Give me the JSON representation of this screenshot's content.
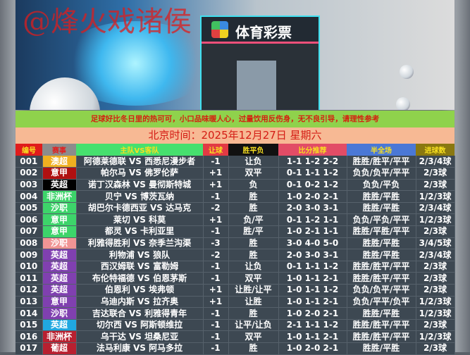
{
  "banner": {
    "watermark": "@烽火戏诸侯",
    "store_sign": "体育彩票"
  },
  "notice": "足球好比冬日里的热可可，小口品味暖人心，过量饮用反伤身，无不良引导，请理性参考",
  "date_line": "北京时间：2025年12月27日  星期六",
  "columns": [
    {
      "label": "编号",
      "bg": "#e01c1c"
    },
    {
      "label": "赛事",
      "bg": "#8c8c8c"
    },
    {
      "label": "主队VS客队",
      "bg": "#46e06e"
    },
    {
      "label": "让球",
      "bg": "#e23a44"
    },
    {
      "label": "胜平负",
      "bg": "#111111"
    },
    {
      "label": "比分推荐",
      "bg": "#e24c66"
    },
    {
      "label": "半全场",
      "bg": "#4a78d6"
    },
    {
      "label": "进球数",
      "bg": "#8a7810"
    }
  ],
  "rows": [
    {
      "no": "001",
      "league": "澳超",
      "league_color": "#f0b020",
      "match": "阿德莱德联 VS 西悉尼漫步者",
      "handicap": "-1",
      "result": "让负",
      "scores": "1-1 1-2 2-2",
      "half_full": "胜胜/胜平/平平",
      "goals": "2/3/4球"
    },
    {
      "no": "002",
      "league": "意甲",
      "league_color": "#b01010",
      "match": "帕尔马 VS 佛罗伦萨",
      "handicap": "+1",
      "result": "双平",
      "scores": "0-1 1-1 1-2",
      "half_full": "负负/负平/平平",
      "goals": "2/3球"
    },
    {
      "no": "003",
      "league": "英超",
      "league_color": "#000000",
      "match": "诺丁汉森林 VS 曼彻斯特城",
      "handicap": "+1",
      "result": "负",
      "scores": "0-1 0-2 1-2",
      "half_full": "负负/平负",
      "goals": "2/3球"
    },
    {
      "no": "004",
      "league": "非洲杯",
      "league_color": "#3dd46a",
      "match": "贝宁 VS 博茨瓦纳",
      "handicap": "-1",
      "result": "胜",
      "scores": "1-0 2-0 2-1",
      "half_full": "胜胜/平胜",
      "goals": "1/2/3球"
    },
    {
      "no": "005",
      "league": "沙职",
      "league_color": "#3dd46a",
      "match": "胡巴尔卡德西亚 VS 达马克",
      "handicap": "-2",
      "result": "胜",
      "scores": "2-0 3-0 3-1",
      "half_full": "胜胜/平胜",
      "goals": "2/3/4球"
    },
    {
      "no": "006",
      "league": "意甲",
      "league_color": "#3dd46a",
      "match": "莱切 VS 科莫",
      "handicap": "+1",
      "result": "负/平",
      "scores": "0-1 1-2 1-1",
      "half_full": "负负/平负/平平",
      "goals": "1/2/3球"
    },
    {
      "no": "007",
      "league": "意甲",
      "league_color": "#3dd46a",
      "match": "都灵 VS 卡利亚里",
      "handicap": "-1",
      "result": "胜/平",
      "scores": "1-0 2-1 1-1",
      "half_full": "胜胜/平胜/平平",
      "goals": "2/3球"
    },
    {
      "no": "008",
      "league": "沙职",
      "league_color": "#f09494",
      "match": "利雅得胜利 VS 奈季兰沟渠",
      "handicap": "-3",
      "result": "胜",
      "scores": "3-0 4-0 5-0",
      "half_full": "胜胜/平胜",
      "goals": "3/4/5球"
    },
    {
      "no": "009",
      "league": "英超",
      "league_color": "#8040b0",
      "match": "利物浦 VS 狼队",
      "handicap": "-2",
      "result": "胜",
      "scores": "2-0 3-0 3-1",
      "half_full": "胜胜/平胜",
      "goals": "2/3/4球"
    },
    {
      "no": "010",
      "league": "英超",
      "league_color": "#8040b0",
      "match": "西汉姆联 VS 富勒姆",
      "handicap": "-1",
      "result": "让负",
      "scores": "0-1 1-1 1-2",
      "half_full": "胜胜/胜平/平平",
      "goals": "2/3球"
    },
    {
      "no": "011",
      "league": "英超",
      "league_color": "#8040b0",
      "match": "布伦特福德 VS 伯恩茅斯",
      "handicap": "-1",
      "result": "双平",
      "scores": "1-0 1-1 2-1",
      "half_full": "胜胜/胜平/平平",
      "goals": "2/3球"
    },
    {
      "no": "012",
      "league": "英超",
      "league_color": "#8040b0",
      "match": "伯恩利 VS 埃弗顿",
      "handicap": "+1",
      "result": "让胜/让平",
      "scores": "1-0 1-1 1-2",
      "half_full": "负负/负平/平平",
      "goals": "2/3球"
    },
    {
      "no": "013",
      "league": "意甲",
      "league_color": "#8040b0",
      "match": "乌迪内斯 VS 拉齐奥",
      "handicap": "+1",
      "result": "让胜",
      "scores": "1-0 1-1 2-1",
      "half_full": "负负/平平/负平",
      "goals": "1/2/3球"
    },
    {
      "no": "014",
      "league": "沙职",
      "league_color": "#8040b0",
      "match": "吉达联合 VS 利雅得青年",
      "handicap": "-1",
      "result": "胜",
      "scores": "1-0 2-0 2-1",
      "half_full": "胜胜/平胜",
      "goals": "1/2/3球"
    },
    {
      "no": "015",
      "league": "英超",
      "league_color": "#20a8e0",
      "match": "切尔西 VS 阿斯顿维拉",
      "handicap": "-1",
      "result": "让平/让负",
      "scores": "2-1 1-1 1-2",
      "half_full": "胜胜/胜平/平平",
      "goals": "2/3球"
    },
    {
      "no": "016",
      "league": "非洲杯",
      "league_color": "#b82030",
      "match": "乌干达 VS 坦桑尼亚",
      "handicap": "-1",
      "result": "双平",
      "scores": "1-0 1-1 2-1",
      "half_full": "胜胜/胜平/平平",
      "goals": "1/2/3球"
    },
    {
      "no": "017",
      "league": "葡超",
      "league_color": "#b82030",
      "match": "法马利康 VS 阿马多拉",
      "handicap": "-1",
      "result": "胜",
      "scores": "1-0 2-0 2-1",
      "half_full": "胜胜/平胜",
      "goals": "2/3球"
    }
  ]
}
